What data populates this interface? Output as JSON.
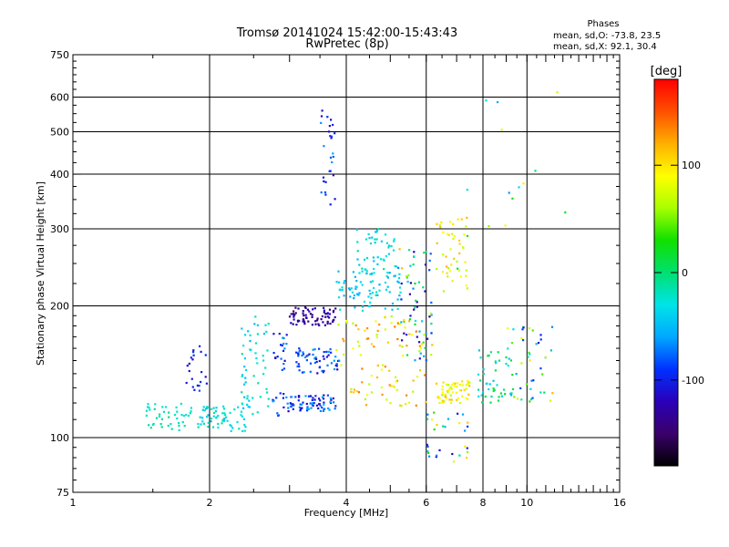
{
  "chart_data": {
    "type": "scatter",
    "title": "Tromsø 20141024 15:42:00-15:43:43",
    "subtitle": "RwPretec (8p)",
    "xlabel": "Frequency [MHz]",
    "ylabel": "Stationary phase Virtual Height [km]",
    "xscale": "log",
    "yscale": "log",
    "xlim": [
      1,
      16
    ],
    "ylim": [
      75,
      750
    ],
    "x_ticks": [
      1,
      2,
      4,
      6,
      8,
      10,
      16
    ],
    "y_ticks": [
      75,
      100,
      200,
      300,
      400,
      500,
      600,
      750
    ],
    "x_grid": [
      2,
      4,
      6,
      8,
      10
    ],
    "y_grid": [
      100,
      200,
      300,
      400,
      500,
      600
    ],
    "grid": true,
    "phase_stats": {
      "title": "Phases",
      "line1": "mean, sd,O: -73.8, 23.5",
      "line2": "mean, sd,X:  92.1, 30.4"
    },
    "colorbar": {
      "label": "[deg]",
      "range": [
        -180,
        180
      ],
      "ticks": [
        100,
        0,
        -100
      ],
      "colormap": [
        "#000000",
        "#3a006a",
        "#2a00b8",
        "#0030ff",
        "#00a8ff",
        "#00e4e8",
        "#00e070",
        "#10e000",
        "#a8ff00",
        "#ffff00",
        "#ffb000",
        "#ff5000",
        "#ff0000"
      ]
    },
    "clusters": [
      {
        "x": [
          1.45,
          1.9
        ],
        "y": [
          104,
          120
        ],
        "phase": [
          -30,
          -5
        ],
        "n": 45
      },
      {
        "x": [
          1.9,
          2.4
        ],
        "y": [
          103,
          118
        ],
        "phase": [
          -50,
          -10
        ],
        "n": 60
      },
      {
        "x": [
          1.75,
          2.0
        ],
        "y": [
          128,
          165
        ],
        "phase": [
          -120,
          -80
        ],
        "n": 22
      },
      {
        "x": [
          2.35,
          2.7
        ],
        "y": [
          110,
          190
        ],
        "phase": [
          -50,
          -10
        ],
        "n": 55
      },
      {
        "x": [
          2.75,
          3.0
        ],
        "y": [
          112,
          175
        ],
        "phase": [
          -120,
          -60
        ],
        "n": 35
      },
      {
        "x": [
          3.0,
          3.8
        ],
        "y": [
          115,
          125
        ],
        "phase": [
          -120,
          -50
        ],
        "n": 70
      },
      {
        "x": [
          3.0,
          3.8
        ],
        "y": [
          180,
          200
        ],
        "phase": [
          -150,
          -110
        ],
        "n": 70
      },
      {
        "x": [
          3.1,
          3.9
        ],
        "y": [
          140,
          160
        ],
        "phase": [
          -120,
          -60
        ],
        "n": 60
      },
      {
        "x": [
          3.5,
          3.8
        ],
        "y": [
          340,
          560
        ],
        "phase": [
          -120,
          -60
        ],
        "n": 28
      },
      {
        "x": [
          3.8,
          5.3
        ],
        "y": [
          195,
          240
        ],
        "phase": [
          -60,
          -20
        ],
        "n": 80
      },
      {
        "x": [
          4.2,
          5.2
        ],
        "y": [
          240,
          300
        ],
        "phase": [
          -50,
          -10
        ],
        "n": 45
      },
      {
        "x": [
          3.8,
          6.0
        ],
        "y": [
          118,
          190
        ],
        "phase": [
          60,
          140
        ],
        "n": 90
      },
      {
        "x": [
          5.2,
          6.2
        ],
        "y": [
          150,
          270
        ],
        "phase": [
          -140,
          120
        ],
        "n": 70
      },
      {
        "x": [
          6.3,
          7.5
        ],
        "y": [
          120,
          135
        ],
        "phase": [
          60,
          120
        ],
        "n": 60
      },
      {
        "x": [
          6.3,
          7.4
        ],
        "y": [
          215,
          320
        ],
        "phase": [
          60,
          120
        ],
        "n": 45
      },
      {
        "x": [
          6.0,
          7.5
        ],
        "y": [
          88,
          115
        ],
        "phase": [
          -120,
          120
        ],
        "n": 30
      },
      {
        "x": [
          7.8,
          9.3
        ],
        "y": [
          120,
          160
        ],
        "phase": [
          -60,
          20
        ],
        "n": 45
      },
      {
        "x": [
          9.0,
          11.5
        ],
        "y": [
          120,
          180
        ],
        "phase": [
          -120,
          120
        ],
        "n": 45
      },
      {
        "x": [
          7.0,
          13.0
        ],
        "y": [
          240,
          620
        ],
        "phase": [
          -120,
          120
        ],
        "n": 15
      }
    ]
  }
}
